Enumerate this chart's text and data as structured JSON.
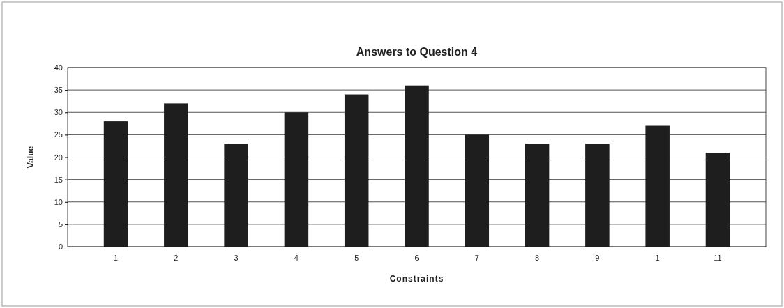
{
  "chart_data": {
    "type": "bar",
    "title": "Answers to Question 4",
    "xlabel": "Constraints",
    "ylabel": "Value",
    "categories": [
      "1",
      "2",
      "3",
      "4",
      "5",
      "6",
      "7",
      "8",
      "9",
      "1",
      "11"
    ],
    "values": [
      28,
      32,
      23,
      30,
      34,
      36,
      25,
      23,
      23,
      27,
      21
    ],
    "color": "#1e1e1e",
    "ylim": [
      0,
      40
    ],
    "yticks": [
      0,
      5,
      10,
      15,
      20,
      25,
      30,
      35,
      40
    ],
    "grid": "y"
  }
}
